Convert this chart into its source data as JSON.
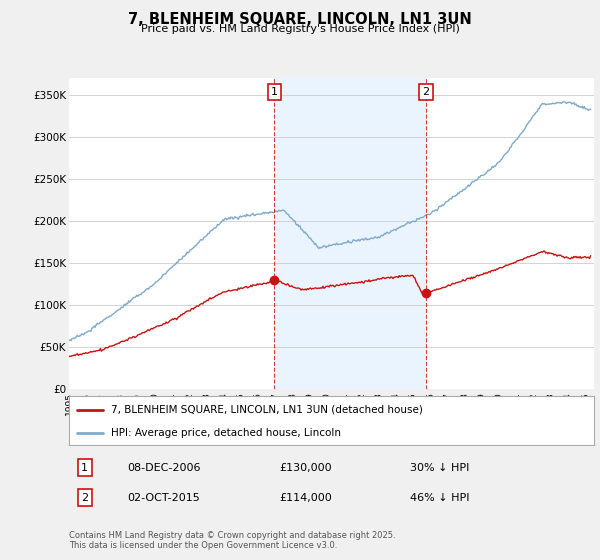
{
  "title": "7, BLENHEIM SQUARE, LINCOLN, LN1 3UN",
  "subtitle": "Price paid vs. HM Land Registry's House Price Index (HPI)",
  "ylabel_ticks": [
    "£0",
    "£50K",
    "£100K",
    "£150K",
    "£200K",
    "£250K",
    "£300K",
    "£350K"
  ],
  "ytick_values": [
    0,
    50000,
    100000,
    150000,
    200000,
    250000,
    300000,
    350000
  ],
  "ylim": [
    0,
    370000
  ],
  "xlim_start": 1995.0,
  "xlim_end": 2025.5,
  "hpi_color": "#7eaacc",
  "hpi_fill_color": "#ddeeff",
  "price_color": "#cc1111",
  "marker1_x": 2006.92,
  "marker1_y": 130000,
  "marker2_x": 2015.75,
  "marker2_y": 114000,
  "marker1_date": "08-DEC-2006",
  "marker1_price": "£130,000",
  "marker1_hpi": "30% ↓ HPI",
  "marker2_date": "02-OCT-2015",
  "marker2_price": "£114,000",
  "marker2_hpi": "46% ↓ HPI",
  "legend_label_price": "7, BLENHEIM SQUARE, LINCOLN, LN1 3UN (detached house)",
  "legend_label_hpi": "HPI: Average price, detached house, Lincoln",
  "footer": "Contains HM Land Registry data © Crown copyright and database right 2025.\nThis data is licensed under the Open Government Licence v3.0.",
  "background_color": "#f0f0f0",
  "plot_bg_color": "#ffffff",
  "grid_color": "#cccccc"
}
